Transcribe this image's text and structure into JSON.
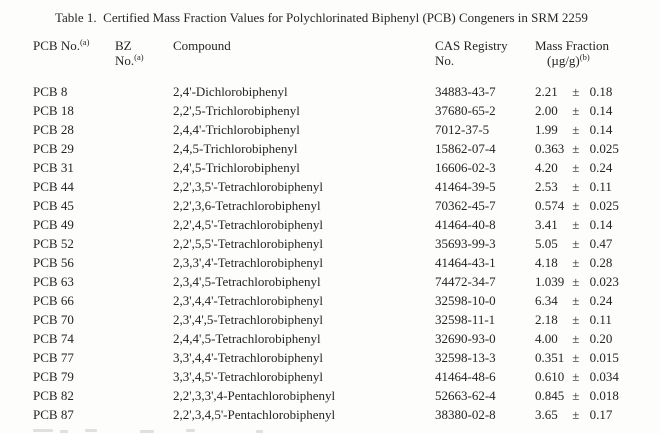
{
  "page": {
    "title": "Table 1.  Certified Mass Fraction Values for Polychlorinated Biphenyl (PCB) Congeners in SRM 2259"
  },
  "table": {
    "pm_symbol": "±",
    "headers": {
      "pcb_label": "PCB No.",
      "pcb_sup": "(a)",
      "bz_line1": "BZ",
      "bz_line2": "No.",
      "bz_sup": "(a)",
      "compound": "Compound",
      "cas_line1": "CAS Registry",
      "cas_line2": "No.",
      "mass_line1": "Mass Fraction",
      "mass_line2": "(µg/g)",
      "mass_sup": "(b)"
    },
    "rows": [
      {
        "pcb": "PCB 8",
        "bz": "",
        "compound": "2,4'-Dichlorobiphenyl",
        "cas": "34883-43-7",
        "value": "2.21",
        "uncertainty": "0.18"
      },
      {
        "pcb": "PCB 18",
        "bz": "",
        "compound": "2,2',5-Trichlorobiphenyl",
        "cas": "37680-65-2",
        "value": "2.00",
        "uncertainty": "0.14"
      },
      {
        "pcb": "PCB 28",
        "bz": "",
        "compound": "2,4,4'-Trichlorobiphenyl",
        "cas": "7012-37-5",
        "value": "1.99",
        "uncertainty": "0.14"
      },
      {
        "pcb": "PCB 29",
        "bz": "",
        "compound": "2,4,5-Trichlorobiphenyl",
        "cas": "15862-07-4",
        "value": "0.363",
        "uncertainty": "0.025"
      },
      {
        "pcb": "PCB 31",
        "bz": "",
        "compound": "2,4',5-Trichlorobiphenyl",
        "cas": "16606-02-3",
        "value": "4.20",
        "uncertainty": "0.24"
      },
      {
        "pcb": "PCB 44",
        "bz": "",
        "compound": "2,2',3,5'-Tetrachlorobiphenyl",
        "cas": "41464-39-5",
        "value": "2.53",
        "uncertainty": "0.11"
      },
      {
        "pcb": "PCB 45",
        "bz": "",
        "compound": "2,2',3,6-Tetrachlorobiphenyl",
        "cas": "70362-45-7",
        "value": "0.574",
        "uncertainty": "0.025"
      },
      {
        "pcb": "PCB 49",
        "bz": "",
        "compound": "2,2',4,5'-Tetrachlorobiphenyl",
        "cas": "41464-40-8",
        "value": "3.41",
        "uncertainty": "0.14"
      },
      {
        "pcb": "PCB 52",
        "bz": "",
        "compound": "2,2',5,5'-Tetrachlorobiphenyl",
        "cas": "35693-99-3",
        "value": "5.05",
        "uncertainty": "0.47"
      },
      {
        "pcb": "PCB 56",
        "bz": "",
        "compound": "2,3,3',4'-Tetrachlorobiphenyl",
        "cas": "41464-43-1",
        "value": "4.18",
        "uncertainty": "0.28"
      },
      {
        "pcb": "PCB 63",
        "bz": "",
        "compound": "2,3,4',5-Tetrachlorobiphenyl",
        "cas": "74472-34-7",
        "value": "1.039",
        "uncertainty": "0.023"
      },
      {
        "pcb": "PCB 66",
        "bz": "",
        "compound": "2,3',4,4'-Tetrachlorobiphenyl",
        "cas": "32598-10-0",
        "value": "6.34",
        "uncertainty": "0.24"
      },
      {
        "pcb": "PCB 70",
        "bz": "",
        "compound": "2,3',4',5-Tetrachlorobiphenyl",
        "cas": "32598-11-1",
        "value": "2.18",
        "uncertainty": "0.11"
      },
      {
        "pcb": "PCB 74",
        "bz": "",
        "compound": "2,4,4',5-Tetrachlorobiphenyl",
        "cas": "32690-93-0",
        "value": "4.00",
        "uncertainty": "0.20"
      },
      {
        "pcb": "PCB 77",
        "bz": "",
        "compound": "3,3',4,4'-Tetrachlorobiphenyl",
        "cas": "32598-13-3",
        "value": "0.351",
        "uncertainty": "0.015"
      },
      {
        "pcb": "PCB 79",
        "bz": "",
        "compound": "3,3',4,5'-Tetrachlorobiphenyl",
        "cas": "41464-48-6",
        "value": "0.610",
        "uncertainty": "0.034"
      },
      {
        "pcb": "PCB 82",
        "bz": "",
        "compound": "2,2',3,3',4-Pentachlorobiphenyl",
        "cas": "52663-62-4",
        "value": "0.845",
        "uncertainty": "0.018"
      },
      {
        "pcb": "PCB 87",
        "bz": "",
        "compound": "2,2',3,4,5'-Pentachlorobiphenyl",
        "cas": "38380-02-8",
        "value": "3.65",
        "uncertainty": "0.17"
      }
    ]
  }
}
